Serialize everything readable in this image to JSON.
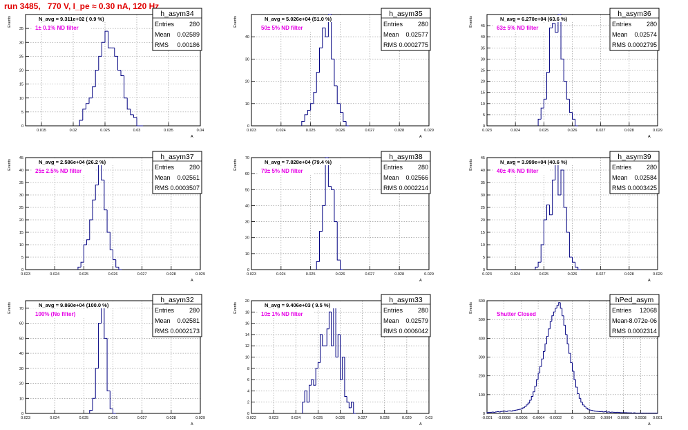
{
  "page": {
    "title": "run 3485,   770 V, I_pe ≈ 0.30 nA, 120 Hz"
  },
  "colors": {
    "line": "#000080",
    "text_accent": "#e600e6",
    "title": "#e00000",
    "grid": "#888888"
  },
  "chart_data": [
    {
      "type": "histogram",
      "name": "h_asym34",
      "stats": {
        "entries_label": "Entries",
        "entries": "280",
        "mean_label": "Mean",
        "mean": "0.02589",
        "rms_label": "RMS",
        "rms": "0.00186"
      },
      "navg": "N_avg = 9.311e+02 ( 0.9 %)",
      "filter": "1± 0.1% ND filter",
      "ylabel": "Events",
      "xlabel": "A",
      "xlim": [
        0.0125,
        0.04
      ],
      "ylim": [
        0,
        40
      ],
      "xticks": [
        0.015,
        0.02,
        0.025,
        0.03,
        0.035,
        0.04
      ],
      "xtick_labels": [
        "0.015",
        "0.02",
        "0.025",
        "0.03",
        "0.035",
        "0.04"
      ],
      "yticks": [
        0,
        5,
        10,
        15,
        20,
        25,
        30,
        35
      ],
      "ytick_labels": [
        "0",
        "5",
        "10",
        "15",
        "20",
        "25",
        "30",
        "35"
      ],
      "bin_start": 0.021,
      "bin_width": 0.0005,
      "values": [
        2,
        6,
        8,
        10,
        14,
        20,
        25,
        30,
        34,
        28,
        28,
        25,
        20,
        18,
        10,
        6,
        4,
        3,
        0,
        0
      ]
    },
    {
      "type": "histogram",
      "name": "h_asym35",
      "stats": {
        "entries_label": "Entries",
        "entries": "280",
        "mean_label": "Mean",
        "mean": "0.02577",
        "rms_label": "RMS",
        "rms": "0.0002775"
      },
      "navg": "N_avg = 5.026e+04 (51.0 %)",
      "filter": "50± 5% ND filter",
      "ylabel": "Events",
      "xlabel": "A",
      "xlim": [
        0.023,
        0.029
      ],
      "ylim": [
        0,
        50
      ],
      "xticks": [
        0.023,
        0.024,
        0.025,
        0.026,
        0.027,
        0.028,
        0.029
      ],
      "xtick_labels": [
        "0.023",
        "0.024",
        "0.025",
        "0.026",
        "0.027",
        "0.028",
        "0.029"
      ],
      "yticks": [
        0,
        10,
        20,
        30,
        40
      ],
      "ytick_labels": [
        "0",
        "10",
        "20",
        "30",
        "40"
      ],
      "bin_start": 0.0247,
      "bin_width": 0.0001,
      "values": [
        2,
        5,
        7,
        10,
        15,
        24,
        35,
        44,
        40,
        50,
        30,
        18,
        10,
        6,
        2,
        0
      ]
    },
    {
      "type": "histogram",
      "name": "h_asym36",
      "stats": {
        "entries_label": "Entries",
        "entries": "280",
        "mean_label": "Mean",
        "mean": "0.02574",
        "rms_label": "RMS",
        "rms": "0.0002795"
      },
      "navg": "N_avg = 6.270e+04 (63.6 %)",
      "filter": "63± 5% ND filter",
      "ylabel": "Events",
      "xlabel": "A",
      "xlim": [
        0.023,
        0.029
      ],
      "ylim": [
        0,
        50
      ],
      "xticks": [
        0.023,
        0.024,
        0.025,
        0.026,
        0.027,
        0.028,
        0.029
      ],
      "xtick_labels": [
        "0.023",
        "0.024",
        "0.025",
        "0.026",
        "0.027",
        "0.028",
        "0.029"
      ],
      "yticks": [
        0,
        5,
        10,
        15,
        20,
        25,
        30,
        35,
        40,
        45
      ],
      "ytick_labels": [
        "0",
        "5",
        "10",
        "15",
        "20",
        "25",
        "30",
        "35",
        "40",
        "45"
      ],
      "bin_start": 0.0248,
      "bin_width": 0.0001,
      "values": [
        3,
        8,
        12,
        24,
        44,
        46,
        42,
        50,
        30,
        20,
        12,
        6,
        3,
        0
      ]
    },
    {
      "type": "histogram",
      "name": "h_asym37",
      "stats": {
        "entries_label": "Entries",
        "entries": "280",
        "mean_label": "Mean",
        "mean": "0.02561",
        "rms_label": "RMS",
        "rms": "0.0003507"
      },
      "navg": "N_avg = 2.586e+04 (26.2 %)",
      "filter": "25± 2.5% ND filter",
      "ylabel": "Events",
      "xlabel": "A",
      "xlim": [
        0.023,
        0.029
      ],
      "ylim": [
        0,
        45
      ],
      "xticks": [
        0.023,
        0.024,
        0.025,
        0.026,
        0.027,
        0.028,
        0.029
      ],
      "xtick_labels": [
        "0.023",
        "0.024",
        "0.025",
        "0.026",
        "0.027",
        "0.028",
        "0.029"
      ],
      "yticks": [
        0,
        5,
        10,
        15,
        20,
        25,
        30,
        35,
        40,
        45
      ],
      "ytick_labels": [
        "0",
        "5",
        "10",
        "15",
        "20",
        "25",
        "30",
        "35",
        "40",
        "45"
      ],
      "bin_start": 0.0248,
      "bin_width": 0.0001,
      "values": [
        1,
        3,
        10,
        12,
        20,
        28,
        34,
        44,
        36,
        24,
        15,
        8,
        4,
        1,
        0
      ]
    },
    {
      "type": "histogram",
      "name": "h_asym38",
      "stats": {
        "entries_label": "Entries",
        "entries": "280",
        "mean_label": "Mean",
        "mean": "0.02566",
        "rms_label": "RMS",
        "rms": "0.0002214"
      },
      "navg": "N_avg = 7.828e+04 (79.4 %)",
      "filter": "79± 5% ND filter",
      "ylabel": "Events",
      "xlabel": "A",
      "xlim": [
        0.023,
        0.029
      ],
      "ylim": [
        0,
        70
      ],
      "xticks": [
        0.023,
        0.024,
        0.025,
        0.026,
        0.027,
        0.028,
        0.029
      ],
      "xtick_labels": [
        "0.023",
        "0.024",
        "0.025",
        "0.026",
        "0.027",
        "0.028",
        "0.029"
      ],
      "yticks": [
        0,
        10,
        20,
        30,
        40,
        50,
        60,
        70
      ],
      "ytick_labels": [
        "0",
        "10",
        "20",
        "30",
        "40",
        "50",
        "60",
        "70"
      ],
      "bin_start": 0.0252,
      "bin_width": 0.0001,
      "values": [
        5,
        24,
        40,
        70,
        52,
        50,
        30,
        6,
        0
      ]
    },
    {
      "type": "histogram",
      "name": "h_asym39",
      "stats": {
        "entries_label": "Entries",
        "entries": "280",
        "mean_label": "Mean",
        "mean": "0.02584",
        "rms_label": "RMS",
        "rms": "0.0003425"
      },
      "navg": "N_avg = 3.999e+04 (40.6 %)",
      "filter": "40± 4% ND filter",
      "ylabel": "Events",
      "xlabel": "A",
      "xlim": [
        0.023,
        0.029
      ],
      "ylim": [
        0,
        45
      ],
      "xticks": [
        0.023,
        0.024,
        0.025,
        0.026,
        0.027,
        0.028,
        0.029
      ],
      "xtick_labels": [
        "0.023",
        "0.024",
        "0.025",
        "0.026",
        "0.027",
        "0.028",
        "0.029"
      ],
      "yticks": [
        0,
        5,
        10,
        15,
        20,
        25,
        30,
        35,
        40,
        45
      ],
      "ytick_labels": [
        "0",
        "5",
        "10",
        "15",
        "20",
        "25",
        "30",
        "35",
        "40",
        "45"
      ],
      "bin_start": 0.0247,
      "bin_width": 0.0001,
      "values": [
        1,
        3,
        10,
        20,
        26,
        22,
        36,
        44,
        30,
        40,
        25,
        15,
        5,
        3,
        1,
        0
      ]
    },
    {
      "type": "histogram",
      "name": "h_asym32",
      "stats": {
        "entries_label": "Entries",
        "entries": "280",
        "mean_label": "Mean",
        "mean": "0.02581",
        "rms_label": "RMS",
        "rms": "0.0002173"
      },
      "navg": "N_avg = 9.860e+04 (100.0 %)",
      "filter": "100% (No filter)",
      "ylabel": "Events",
      "xlabel": "A",
      "xlim": [
        0.023,
        0.029
      ],
      "ylim": [
        0,
        75
      ],
      "xticks": [
        0.023,
        0.024,
        0.025,
        0.026,
        0.027,
        0.028,
        0.029
      ],
      "xtick_labels": [
        "0.023",
        "0.024",
        "0.025",
        "0.026",
        "0.027",
        "0.028",
        "0.029"
      ],
      "yticks": [
        0,
        10,
        20,
        30,
        40,
        50,
        60,
        70
      ],
      "ytick_labels": [
        "0",
        "10",
        "20",
        "30",
        "40",
        "50",
        "60",
        "70"
      ],
      "bin_start": 0.0252,
      "bin_width": 0.0001,
      "values": [
        2,
        10,
        30,
        60,
        72,
        50,
        15,
        3,
        0
      ]
    },
    {
      "type": "histogram",
      "name": "h_asym33",
      "stats": {
        "entries_label": "Entries",
        "entries": "280",
        "mean_label": "Mean",
        "mean": "0.02579",
        "rms_label": "RMS",
        "rms": "0.0006042"
      },
      "navg": "N_avg = 9.406e+03 ( 9.5 %)",
      "filter": "10± 1% ND filter",
      "ylabel": "Events",
      "xlabel": "A",
      "xlim": [
        0.022,
        0.03
      ],
      "ylim": [
        0,
        20
      ],
      "xticks": [
        0.022,
        0.023,
        0.024,
        0.025,
        0.026,
        0.027,
        0.028,
        0.029,
        0.03
      ],
      "xtick_labels": [
        "0.022",
        "0.023",
        "0.024",
        "0.025",
        "0.026",
        "0.027",
        "0.028",
        "0.029",
        "0.03"
      ],
      "yticks": [
        0,
        2,
        4,
        6,
        8,
        10,
        12,
        14,
        16,
        18,
        20
      ],
      "ytick_labels": [
        "0",
        "2",
        "4",
        "6",
        "8",
        "10",
        "12",
        "14",
        "16",
        "18",
        "20"
      ],
      "bin_start": 0.0243,
      "bin_width": 0.0001,
      "values": [
        2,
        4,
        2,
        5,
        6,
        5,
        8,
        9,
        14,
        12,
        12,
        15,
        18,
        12,
        19,
        10,
        14,
        6,
        10,
        3,
        2,
        1,
        2,
        0
      ]
    },
    {
      "type": "histogram",
      "name": "hPed_asym",
      "stats": {
        "entries_label": "Entries",
        "entries": "12068",
        "mean_label": "Mean",
        "mean": "-8.072e-06",
        "rms_label": "RMS",
        "rms": "0.0002314"
      },
      "navg": "",
      "filter": "Shutter Closed",
      "ylabel": "Events",
      "xlabel": "A",
      "xlim": [
        -0.001,
        0.001
      ],
      "ylim": [
        0,
        600
      ],
      "xticks": [
        -0.001,
        -0.0008,
        -0.0006,
        -0.0004,
        -0.0002,
        0,
        0.0002,
        0.0004,
        0.0006,
        0.0008,
        0.001
      ],
      "xtick_labels": [
        "-0.001",
        "-0.0008",
        "-0.0006",
        "-0.0004",
        "-0.0002",
        "0",
        "0.0002",
        "0.0004",
        "0.0006",
        "0.0008",
        "0.001"
      ],
      "yticks": [
        0,
        100,
        200,
        300,
        400,
        500,
        600
      ],
      "ytick_labels": [
        "0",
        "100",
        "200",
        "300",
        "400",
        "500",
        "600"
      ],
      "bin_start": -0.001,
      "bin_width": 2e-05,
      "values": [
        4,
        5,
        6,
        7,
        6,
        8,
        9,
        8,
        10,
        11,
        12,
        10,
        13,
        14,
        12,
        15,
        16,
        18,
        20,
        22,
        25,
        30,
        36,
        45,
        55,
        70,
        90,
        115,
        145,
        180,
        215,
        250,
        290,
        330,
        370,
        410,
        450,
        490,
        520,
        540,
        560,
        575,
        590,
        560,
        520,
        470,
        420,
        370,
        320,
        270,
        225,
        180,
        140,
        105,
        80,
        60,
        45,
        35,
        28,
        22,
        18,
        16,
        14,
        12,
        11,
        10,
        9,
        10,
        8,
        9,
        7,
        8,
        6,
        7,
        6,
        5,
        6,
        5,
        4,
        4,
        4,
        4,
        3,
        3,
        3,
        2,
        3,
        2,
        2,
        2,
        2,
        2,
        2,
        2,
        2,
        2,
        2,
        2,
        2,
        2
      ]
    }
  ]
}
